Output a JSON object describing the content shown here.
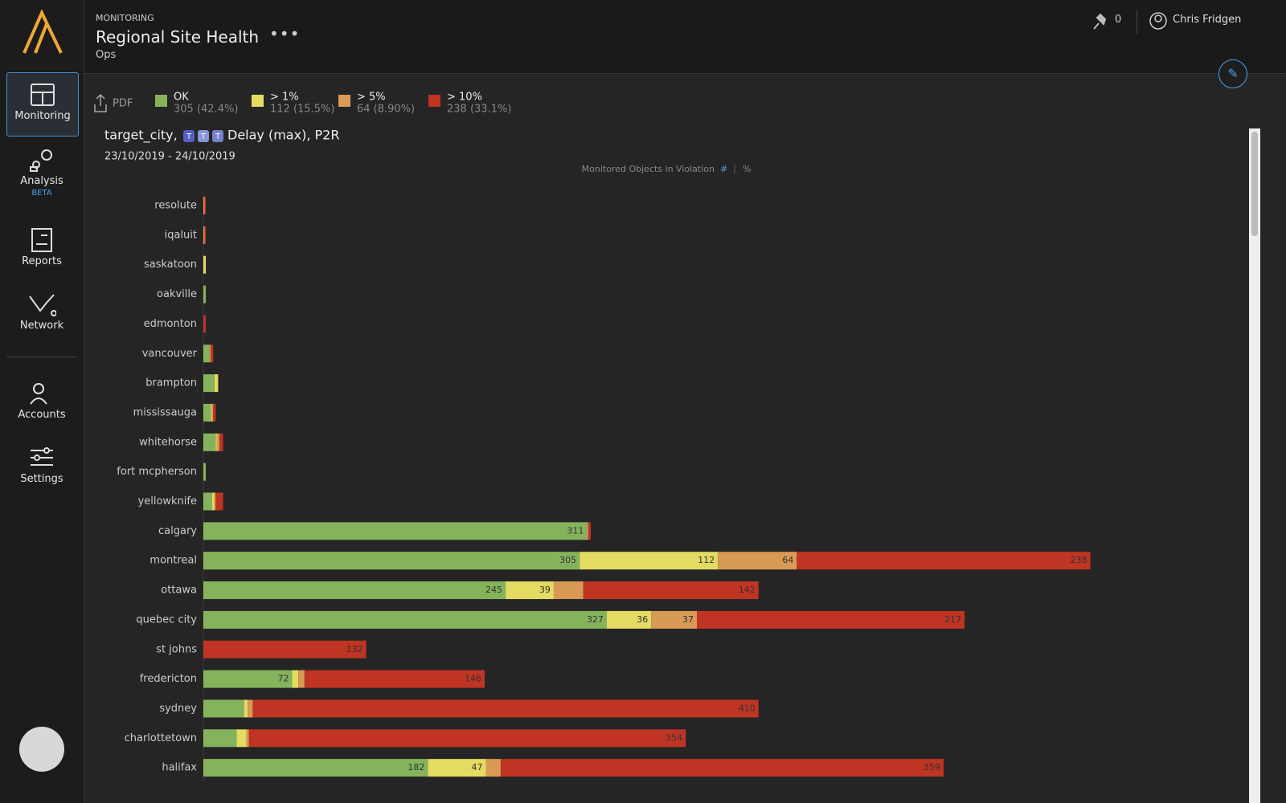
{
  "sidebar": {
    "nav": [
      {
        "label": "Monitoring"
      },
      {
        "label": "Analysis",
        "badge": "BETA"
      },
      {
        "label": "Reports"
      },
      {
        "label": "Network"
      },
      {
        "label": "Accounts"
      },
      {
        "label": "Settings"
      }
    ]
  },
  "header": {
    "section": "MONITORING",
    "title": "Regional Site Health",
    "subtitle": "Ops",
    "pins": 0,
    "user": "Chris Fridgen"
  },
  "toolbar": {
    "export": "PDF"
  },
  "chart_data": {
    "type": "bar",
    "orientation": "horizontal",
    "stacked": true,
    "title_prefix": "target_city,",
    "badges": [
      "T",
      "T",
      "T"
    ],
    "title": "Delay (max), P2R",
    "subtitle": "23/10/2019 - 24/10/2019",
    "x_label": "Monitored Objects in Violation",
    "modes": [
      "#",
      "%"
    ],
    "categories": [
      "resolute",
      "iqaluit",
      "saskatoon",
      "oakville",
      "edmonton",
      "vancouver",
      "brampton",
      "mississauga",
      "whitehorse",
      "fort mcpherson",
      "yellowknife",
      "calgary",
      "montreal",
      "ottawa",
      "quebec city",
      "st johns",
      "fredericton",
      "sydney",
      "charlottetown",
      "halifax"
    ],
    "series": [
      {
        "name": "OK",
        "summary": "305 (42.4%)",
        "color": "#84b35c",
        "values": [
          0,
          0,
          0,
          2,
          0,
          5,
          9,
          6,
          10,
          2,
          7,
          311,
          305,
          245,
          327,
          0,
          72,
          33,
          27,
          182
        ]
      },
      {
        "name": "> 1%",
        "summary": "112 (15.5%)",
        "color": "#e4db63",
        "values": [
          0,
          0,
          2,
          0,
          0,
          0,
          3,
          1,
          1,
          0,
          2,
          0,
          112,
          39,
          36,
          0,
          5,
          3,
          8,
          47
        ]
      },
      {
        "name": "> 5%",
        "summary": "64 (8.90%)",
        "color": "#d89a55",
        "values": [
          1,
          1,
          0,
          0,
          0,
          1,
          0,
          1,
          2,
          0,
          1,
          1,
          64,
          24,
          37,
          0,
          5,
          4,
          2,
          12
        ]
      },
      {
        "name": "> 10%",
        "summary": "238 (33.1%)",
        "color": "#bf3423",
        "values": [
          1,
          1,
          0,
          0,
          2,
          2,
          0,
          2,
          3,
          0,
          6,
          2,
          238,
          142,
          217,
          132,
          146,
          410,
          354,
          359
        ]
      }
    ]
  }
}
